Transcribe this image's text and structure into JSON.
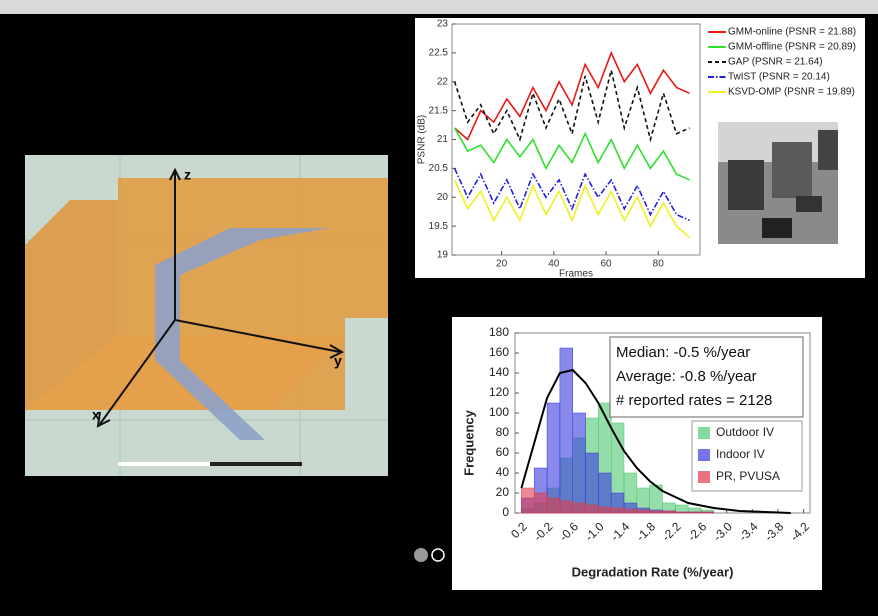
{
  "chart_data": [
    {
      "type": "line",
      "xlabel": "Frames",
      "ylabel": "PSNR (dB)",
      "x": [
        2,
        7,
        12,
        17,
        22,
        27,
        32,
        37,
        42,
        47,
        52,
        57,
        62,
        67,
        72,
        77,
        82,
        87,
        92
      ],
      "xlim": [
        1,
        96
      ],
      "xticks": [
        20,
        40,
        60,
        80
      ],
      "ylim": [
        19,
        23
      ],
      "yticks": [
        19,
        19.5,
        20,
        20.5,
        21,
        21.5,
        22,
        22.5,
        23
      ],
      "legend": "upper right",
      "series": [
        {
          "name": "GMM-online (PSNR = 21.88)",
          "color": "#e81818",
          "linestyle": "solid",
          "values": [
            21.2,
            21.0,
            21.5,
            21.3,
            21.7,
            21.4,
            21.9,
            21.5,
            22.0,
            21.6,
            22.3,
            21.9,
            22.5,
            22.0,
            22.3,
            21.8,
            22.2,
            21.9,
            21.8
          ]
        },
        {
          "name": "GMM-offline (PSNR = 20.89)",
          "color": "#2fe02f",
          "linestyle": "solid",
          "values": [
            21.2,
            20.8,
            20.9,
            20.6,
            21.0,
            20.7,
            21.0,
            20.5,
            20.9,
            20.6,
            21.1,
            20.6,
            21.0,
            20.5,
            20.9,
            20.5,
            20.8,
            20.4,
            20.3
          ]
        },
        {
          "name": "GAP (PSNR = 21.64)",
          "color": "#111111",
          "linestyle": "dashed",
          "values": [
            22.0,
            21.3,
            21.6,
            21.1,
            21.5,
            21.0,
            21.8,
            21.2,
            21.7,
            21.1,
            22.1,
            21.3,
            22.2,
            21.2,
            21.9,
            21.0,
            21.8,
            21.1,
            21.2
          ]
        },
        {
          "name": "TwIST (PSNR = 20.14)",
          "color": "#2020e0",
          "linestyle": "dashdot",
          "values": [
            20.5,
            20.0,
            20.4,
            19.9,
            20.3,
            19.8,
            20.4,
            20.0,
            20.3,
            19.8,
            20.4,
            20.0,
            20.3,
            19.8,
            20.2,
            19.7,
            20.1,
            19.7,
            19.6
          ]
        },
        {
          "name": "KSVD-OMP (PSNR = 19.89)",
          "color": "#f0f020",
          "linestyle": "solid",
          "values": [
            20.3,
            19.8,
            20.1,
            19.6,
            20.0,
            19.6,
            20.2,
            19.7,
            20.1,
            19.6,
            20.2,
            19.7,
            20.1,
            19.6,
            20.0,
            19.5,
            19.9,
            19.5,
            19.3
          ]
        }
      ]
    },
    {
      "type": "histogram",
      "xlabel": "Degradation Rate (%/year)",
      "ylabel": "Frequency",
      "bins": [
        0.2,
        0,
        -0.2,
        -0.4,
        -0.6,
        -0.8,
        -1.0,
        -1.2,
        -1.4,
        -1.6,
        -1.8,
        -2.0,
        -2.2,
        -2.4,
        -2.6,
        -2.8
      ],
      "xlim": [
        0.3,
        -4.3
      ],
      "xticks": [
        0.2,
        -0.2,
        -0.6,
        {
          "value": -1,
          "label": "-1.0"
        },
        -1.4,
        -1.8,
        -2.2,
        -2.6,
        {
          "value": -3,
          "label": "-3.0"
        },
        -3.4,
        -3.8,
        -4.2
      ],
      "ylim": [
        0,
        180
      ],
      "yticks": [
        0,
        20,
        40,
        60,
        80,
        100,
        120,
        140,
        160,
        180
      ],
      "legend": "center right",
      "annotations": [
        "Median: -0.5 %/year",
        "Average: -0.8 %/year",
        "# reported rates = 2128"
      ],
      "series": [
        {
          "name": "Outdoor IV",
          "color": "#4fc870",
          "values": [
            5,
            10,
            25,
            55,
            75,
            95,
            110,
            90,
            40,
            25,
            28,
            10,
            8,
            5,
            3
          ]
        },
        {
          "name": "Indoor IV",
          "color": "#3a3ae0",
          "values": [
            15,
            45,
            110,
            165,
            100,
            60,
            40,
            20,
            10,
            5,
            3,
            2,
            1,
            1,
            1
          ]
        },
        {
          "name": "PR, PVUSA",
          "color": "#e03a4a",
          "values": [
            25,
            20,
            15,
            12,
            10,
            8,
            6,
            5,
            4,
            3,
            2,
            2,
            1,
            1,
            1
          ]
        }
      ],
      "fit": {
        "x": [
          0.2,
          0,
          -0.2,
          -0.4,
          -0.6,
          -0.8,
          -1.0,
          -1.2,
          -1.4,
          -1.6,
          -1.8,
          -2.0,
          -2.4,
          -2.8,
          -3.2,
          -3.6,
          -4.0
        ],
        "values": [
          25,
          70,
          115,
          140,
          143,
          130,
          110,
          85,
          62,
          45,
          32,
          22,
          10,
          5,
          2,
          1,
          0
        ],
        "color": "#000000"
      }
    }
  ],
  "diagram": {
    "axes": [
      "z",
      "y",
      "x"
    ]
  }
}
